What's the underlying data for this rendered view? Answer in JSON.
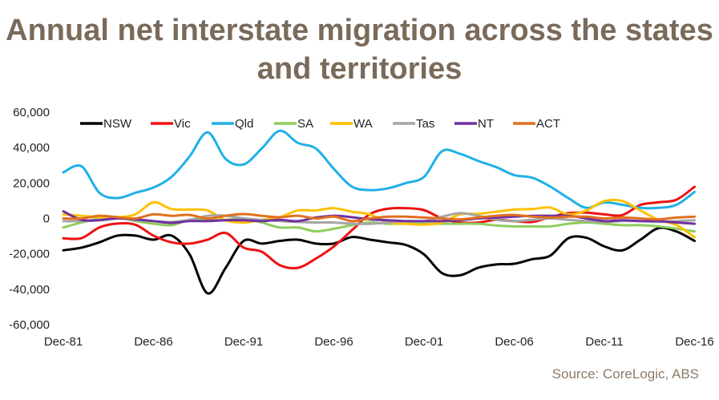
{
  "chart_data": {
    "type": "line",
    "title": "Annual net interstate migration across the states and territories",
    "xlabel": "",
    "ylabel": "",
    "ylim": [
      -60000,
      60000
    ],
    "yticks": [
      "60,000",
      "40,000",
      "20,000",
      "0",
      "-20,000",
      "-40,000",
      "-60,000"
    ],
    "ytick_values": [
      60000,
      40000,
      20000,
      0,
      -20000,
      -40000,
      -60000
    ],
    "xticks": [
      "Dec-81",
      "Dec-86",
      "Dec-91",
      "Dec-96",
      "Dec-01",
      "Dec-06",
      "Dec-11",
      "Dec-16"
    ],
    "x": [
      "Dec-81",
      "Dec-82",
      "Dec-83",
      "Dec-84",
      "Dec-85",
      "Dec-86",
      "Dec-87",
      "Dec-88",
      "Dec-89",
      "Dec-90",
      "Dec-91",
      "Dec-92",
      "Dec-93",
      "Dec-94",
      "Dec-95",
      "Dec-96",
      "Dec-97",
      "Dec-98",
      "Dec-99",
      "Dec-00",
      "Dec-01",
      "Dec-02",
      "Dec-03",
      "Dec-04",
      "Dec-05",
      "Dec-06",
      "Dec-07",
      "Dec-08",
      "Dec-09",
      "Dec-10",
      "Dec-11",
      "Dec-12",
      "Dec-13",
      "Dec-14",
      "Dec-15",
      "Dec-16"
    ],
    "grid": false,
    "legend": "top",
    "series": [
      {
        "name": "NSW",
        "color": "#000000",
        "values": [
          -18000,
          -16500,
          -13500,
          -9700,
          -9700,
          -12000,
          -9700,
          -20300,
          -42300,
          -27900,
          -12700,
          -14200,
          -12700,
          -12000,
          -14200,
          -14200,
          -10500,
          -12000,
          -13500,
          -15000,
          -20300,
          -30900,
          -32100,
          -27900,
          -26000,
          -25600,
          -23000,
          -21000,
          -11200,
          -10900,
          -15800,
          -18000,
          -12000,
          -5500,
          -7400,
          -12700
        ]
      },
      {
        "name": "Vic",
        "color": "#ee1111",
        "values": [
          -11200,
          -11200,
          -5100,
          -2900,
          -3600,
          -9700,
          -13500,
          -14200,
          -12000,
          -8200,
          -16500,
          -18800,
          -26400,
          -27900,
          -22700,
          -15800,
          -6700,
          2400,
          5500,
          5800,
          4700,
          0,
          -2300,
          -2300,
          -800,
          -1500,
          -2000,
          700,
          3000,
          3300,
          2300,
          1900,
          7600,
          9100,
          10600,
          17900
        ]
      },
      {
        "name": "Qld",
        "color": "#1fb0e8",
        "values": [
          26000,
          29500,
          14500,
          11500,
          14500,
          17500,
          23500,
          35000,
          48600,
          33600,
          30500,
          39500,
          49500,
          42700,
          39500,
          28000,
          18000,
          16000,
          17000,
          20000,
          23500,
          38000,
          36500,
          32500,
          29000,
          24500,
          23000,
          18000,
          11500,
          6000,
          9000,
          7700,
          6000,
          6000,
          7700,
          15000
        ]
      },
      {
        "name": "SA",
        "color": "#8fcd5c",
        "values": [
          -5100,
          -2300,
          0,
          700,
          -1500,
          -3000,
          -3800,
          -800,
          -800,
          -800,
          0,
          -2300,
          -5100,
          -5100,
          -7300,
          -5800,
          -3800,
          -2300,
          -3000,
          -3000,
          -3000,
          -3000,
          -3000,
          -3000,
          -4000,
          -4500,
          -4500,
          -4500,
          -3000,
          -2300,
          -3000,
          -3800,
          -3800,
          -4500,
          -5800,
          -7300
        ]
      },
      {
        "name": "WA",
        "color": "#ffc000",
        "values": [
          2300,
          1500,
          700,
          700,
          2300,
          9100,
          5300,
          5000,
          4500,
          -1000,
          -2300,
          -800,
          700,
          4500,
          4500,
          5800,
          3800,
          2300,
          -2300,
          -3000,
          -3500,
          -2300,
          2300,
          2600,
          3800,
          5000,
          5300,
          6100,
          2300,
          4500,
          9800,
          9800,
          4500,
          -800,
          -3800,
          -10600
        ]
      },
      {
        "name": "Tas",
        "color": "#a5a5a5",
        "values": [
          -1500,
          -1500,
          -800,
          0,
          -800,
          -1500,
          -2000,
          -800,
          1500,
          1500,
          0,
          -800,
          -1500,
          -2000,
          -2300,
          -2300,
          -3000,
          -3000,
          -2300,
          -1500,
          -1500,
          1000,
          3000,
          1500,
          -800,
          -1500,
          -800,
          0,
          -800,
          -1500,
          -2000,
          -1500,
          -1500,
          -2000,
          -1500,
          -1000
        ]
      },
      {
        "name": "NT",
        "color": "#7030a0",
        "values": [
          4000,
          -800,
          -1000,
          0,
          -500,
          -1500,
          -2500,
          -1500,
          -1500,
          -1000,
          -1000,
          -1500,
          -800,
          -1500,
          500,
          1500,
          700,
          -500,
          -1000,
          -1500,
          -1500,
          -1500,
          -1000,
          0,
          500,
          1000,
          1500,
          1500,
          1500,
          0,
          -1500,
          -1000,
          -1500,
          -1500,
          -2300,
          -3000
        ]
      },
      {
        "name": "ACT",
        "color": "#e0701f",
        "values": [
          0,
          0,
          1500,
          700,
          0,
          2300,
          1500,
          2000,
          0,
          1500,
          2500,
          1500,
          700,
          1500,
          0,
          1000,
          -1500,
          0,
          1000,
          1000,
          500,
          0,
          -500,
          500,
          1500,
          2000,
          1000,
          500,
          1000,
          1000,
          0,
          500,
          0,
          -500,
          500,
          1000
        ]
      }
    ]
  },
  "source": "Source: CoreLogic, ABS"
}
